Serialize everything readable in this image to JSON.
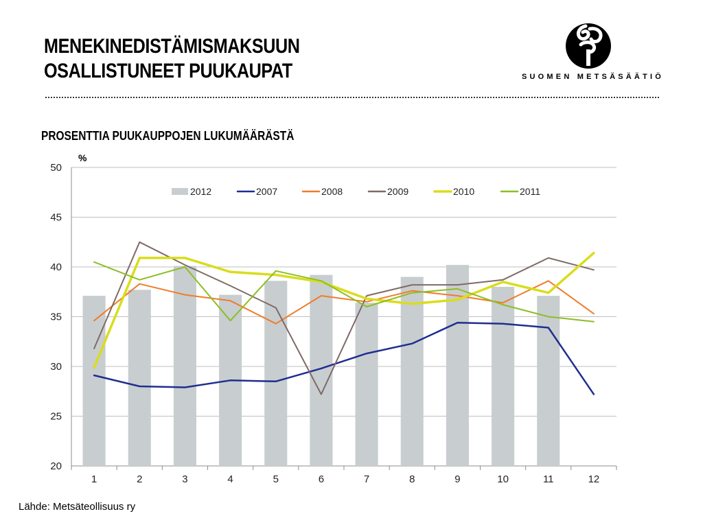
{
  "title_lines": [
    "MENEKINEDISTÄMISMAKSUUN",
    "OSALLISTUNEET PUUKAUPAT"
  ],
  "logo": {
    "text": "SUOMEN METSÄSÄÄTIÖ"
  },
  "subtitle": "PROSENTTIA PUUKAUPPOJEN LUKUMÄÄRÄSTÄ",
  "source": "Lähde: Metsäteollisuus ry",
  "chart_data": {
    "type": "bar",
    "ylabel": "%",
    "ylim": [
      20,
      50
    ],
    "yticks": [
      20,
      25,
      30,
      35,
      40,
      45,
      50
    ],
    "grid": true,
    "legend_position": "top",
    "categories": [
      "1",
      "2",
      "3",
      "4",
      "5",
      "6",
      "7",
      "8",
      "9",
      "10",
      "11",
      "12"
    ],
    "series": [
      {
        "name": "2012",
        "type": "bar",
        "color": "#c8cdd0",
        "values": [
          37.1,
          37.7,
          40.1,
          37.2,
          38.6,
          39.2,
          36.4,
          39.0,
          40.2,
          38.0,
          37.1,
          null
        ]
      },
      {
        "name": "2007",
        "type": "line",
        "color": "#1f2e8f",
        "width": 2.5,
        "values": [
          29.1,
          28.0,
          27.9,
          28.6,
          28.5,
          29.8,
          31.3,
          32.3,
          34.4,
          34.3,
          33.9,
          27.2
        ]
      },
      {
        "name": "2008",
        "type": "line",
        "color": "#f07c28",
        "width": 2,
        "values": [
          34.6,
          38.3,
          37.2,
          36.6,
          34.3,
          37.1,
          36.5,
          37.6,
          37.1,
          36.4,
          38.6,
          35.3
        ]
      },
      {
        "name": "2009",
        "type": "line",
        "color": "#7f6a66",
        "width": 2,
        "values": [
          31.8,
          42.5,
          40.2,
          38.1,
          35.9,
          27.2,
          37.1,
          38.2,
          38.2,
          38.7,
          40.9,
          39.7
        ]
      },
      {
        "name": "2010",
        "type": "line",
        "color": "#d9dd1c",
        "width": 3.5,
        "values": [
          29.9,
          40.9,
          40.9,
          39.5,
          39.2,
          38.5,
          36.8,
          36.3,
          36.7,
          38.5,
          37.4,
          41.4
        ]
      },
      {
        "name": "2011",
        "type": "line",
        "color": "#8dbe23",
        "width": 2,
        "values": [
          40.5,
          38.7,
          40.0,
          34.6,
          39.6,
          38.6,
          36.0,
          37.4,
          37.8,
          36.2,
          35.0,
          34.5
        ]
      }
    ]
  }
}
